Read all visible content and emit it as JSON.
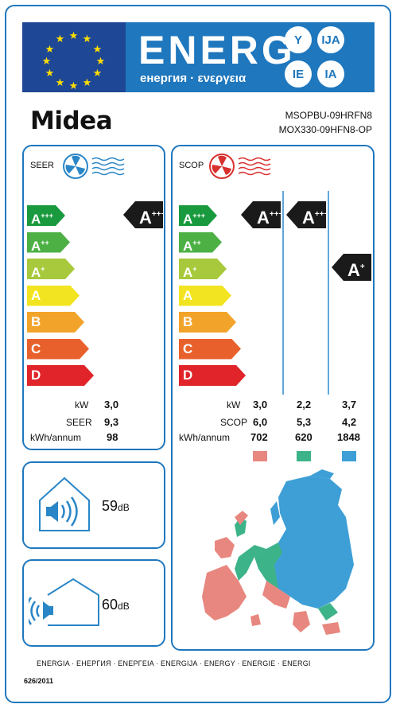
{
  "header": {
    "energy_word": "ENERG",
    "energy_sub": "енергия · ενεργεια",
    "lang_suffixes": [
      "Y",
      "IJA",
      "IE",
      "IA"
    ]
  },
  "brand": {
    "name": "Midea"
  },
  "model": {
    "indoor": "MSOPBU-09HRFN8",
    "outdoor": "MOX330-09HFN8-OP"
  },
  "cooling": {
    "title": "SEER",
    "fan_icon": "blue-fan-icon",
    "classes": [
      "A+++",
      "A++",
      "A+",
      "A",
      "B",
      "C",
      "D"
    ],
    "rating": "A+++",
    "rows": [
      {
        "label": "kW",
        "value": "3,0"
      },
      {
        "label": "SEER",
        "value": "9,3"
      },
      {
        "label": "kWh/annum",
        "value": "98"
      }
    ]
  },
  "heating": {
    "title": "SCOP",
    "fan_icon": "red-fan-icon",
    "classes": [
      "A+++",
      "A++",
      "A+",
      "A",
      "B",
      "C",
      "D"
    ],
    "ratings": [
      "A+++",
      "A+++",
      "A+"
    ],
    "rows": [
      {
        "label": "kW",
        "values": [
          "3,0",
          "2,2",
          "3,7"
        ]
      },
      {
        "label": "SCOP",
        "values": [
          "6,0",
          "5,3",
          "4,2"
        ]
      },
      {
        "label": "kWh/annum",
        "values": [
          "702",
          "620",
          "1848"
        ]
      }
    ],
    "zone_colors": [
      "#e8877f",
      "#3db389",
      "#3d9fd6"
    ]
  },
  "noise": {
    "indoor_value": "59",
    "outdoor_value": "60",
    "unit": "dB",
    "indoor_icon": "indoor-speaker-icon",
    "outdoor_icon": "outdoor-speaker-icon"
  },
  "colors": {
    "frame": "#1f77bd",
    "class_bars": [
      "#1a9a3e",
      "#4cb044",
      "#a7c93b",
      "#f2e421",
      "#f2a32a",
      "#e8612c",
      "#e0242a"
    ]
  },
  "footer": {
    "languages": "ENERGIA · ЕНЕРГИЯ · ΕΝΕΡΓΕΙΑ · ENERGIJA · ENERGY · ENERGIE · ENERGI",
    "regulation": "626/2011"
  }
}
